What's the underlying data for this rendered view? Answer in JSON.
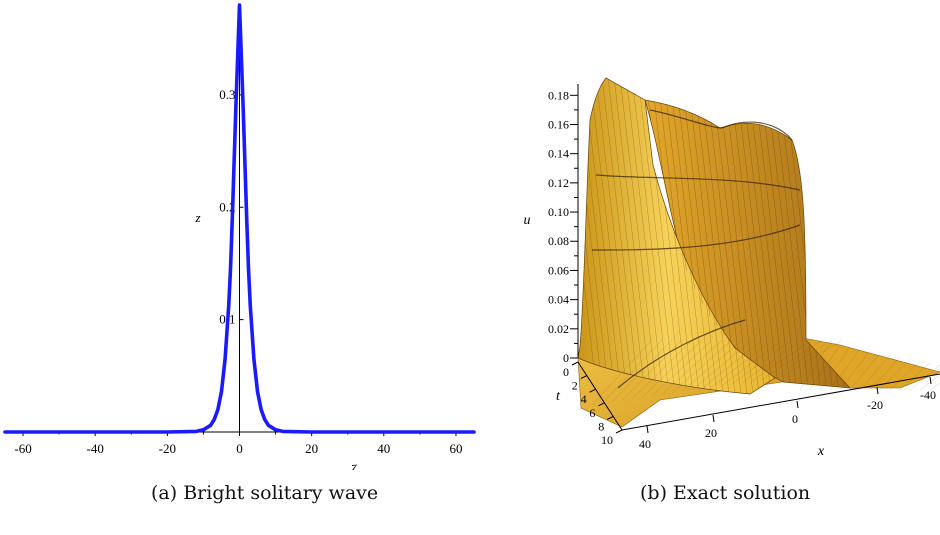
{
  "chart_data": [
    {
      "type": "line",
      "subplot": "a",
      "caption": "(a) Bright solitary wave",
      "xlabel": "ζ",
      "ylabel": "z",
      "xlim": [
        -65,
        65
      ],
      "ylim": [
        0,
        0.38
      ],
      "xticks": [
        -60,
        -40,
        -20,
        0,
        20,
        40,
        60
      ],
      "xtick_labels": [
        "-60",
        "-40",
        "-20",
        "0",
        "20",
        "40",
        "60"
      ],
      "yticks": [
        0.1,
        0.2,
        0.3
      ],
      "ytick_labels": [
        "0.1",
        "0.2",
        "0.3"
      ],
      "line_color": "#1a1aff",
      "grid": false,
      "series": [
        {
          "x": [
            -65,
            -20,
            -12,
            -10,
            -8,
            -7,
            -6,
            -5,
            -4,
            -3,
            -2.5,
            -2,
            -1.5,
            -1,
            -0.5,
            0,
            0.5,
            1,
            1.5,
            2,
            2.5,
            3,
            4,
            5,
            6,
            7,
            8,
            10,
            12,
            20,
            65
          ],
          "y": [
            0,
            0,
            0.0005,
            0.002,
            0.006,
            0.011,
            0.02,
            0.036,
            0.065,
            0.112,
            0.145,
            0.19,
            0.24,
            0.29,
            0.335,
            0.38,
            0.335,
            0.29,
            0.24,
            0.19,
            0.145,
            0.112,
            0.065,
            0.036,
            0.02,
            0.011,
            0.006,
            0.002,
            0.0005,
            0,
            0
          ]
        }
      ]
    },
    {
      "type": "surface",
      "subplot": "b",
      "caption": "(b) Exact solution",
      "xlabel": "x",
      "ylabel": "t",
      "zlabel": "u",
      "surface_color": "#f0b830",
      "zticks": [
        0,
        0.02,
        0.04,
        0.06,
        0.08,
        0.1,
        0.12,
        0.14,
        0.16,
        0.18
      ],
      "ztick_labels": [
        "0",
        "0.02",
        "0.04",
        "0.06",
        "0.08",
        "0.10",
        "0.12",
        "0.14",
        "0.16",
        "0.18"
      ],
      "tticks": [
        0,
        2,
        4,
        6,
        8,
        10
      ],
      "ttick_labels": [
        "0",
        "2",
        "4",
        "6",
        "8",
        "10"
      ],
      "xticks": [
        40,
        20,
        0,
        -20,
        -40
      ],
      "xtick_labels": [
        "40",
        "20",
        "0",
        "-20",
        "-40"
      ]
    }
  ]
}
